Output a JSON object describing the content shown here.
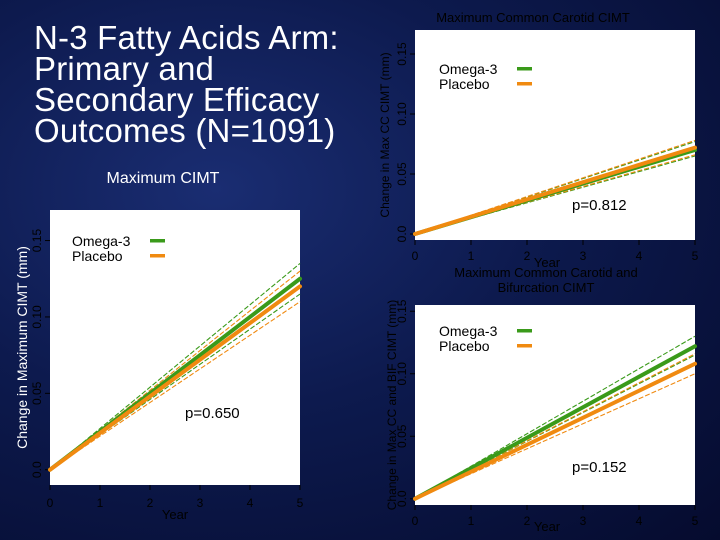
{
  "slide": {
    "title_lines": [
      "N-3 Fatty Acids Arm:",
      "Primary and",
      "Secondary Efficacy",
      "Outcomes (N=1091)"
    ]
  },
  "colors": {
    "omega3": "#3a9a1a",
    "placebo": "#f08a10",
    "background": "#0d1a4e"
  },
  "chart_data": [
    {
      "type": "line",
      "title": "Maximum CIMT",
      "xlabel": "Year",
      "ylabel": "Change in Maximum CIMT (mm)",
      "x_ticks": [
        "0",
        "1",
        "2",
        "3",
        "4",
        "5"
      ],
      "y_ticks": [
        "0.0",
        "0.05",
        "0.10",
        "0.15"
      ],
      "xlim": [
        0,
        5
      ],
      "ylim": [
        -0.01,
        0.17
      ],
      "annotation": "p=0.650",
      "legend_position": "top-left",
      "series": [
        {
          "name": "Omega-3",
          "color": "#3a9a1a",
          "x": [
            0,
            5
          ],
          "y": [
            0,
            0.125
          ],
          "lower": [
            0,
            0.115
          ],
          "upper": [
            0,
            0.135
          ]
        },
        {
          "name": "Placebo",
          "color": "#f08a10",
          "x": [
            0,
            5
          ],
          "y": [
            0,
            0.12
          ],
          "lower": [
            0,
            0.11
          ],
          "upper": [
            0,
            0.13
          ]
        }
      ]
    },
    {
      "type": "line",
      "title": "Maximum Common Carotid CIMT",
      "xlabel": "Year",
      "ylabel": "Change in Max CC CIMT (mm)",
      "x_ticks": [
        "0",
        "1",
        "2",
        "3",
        "4",
        "5"
      ],
      "y_ticks": [
        "0.0",
        "0.05",
        "0.10",
        "0.15"
      ],
      "xlim": [
        0,
        5
      ],
      "ylim": [
        -0.005,
        0.17
      ],
      "annotation": "p=0.812",
      "legend_position": "top-right",
      "series": [
        {
          "name": "Omega-3",
          "color": "#3a9a1a",
          "x": [
            0,
            5
          ],
          "y": [
            0,
            0.07
          ],
          "lower": [
            0,
            0.065
          ],
          "upper": [
            0,
            0.077
          ]
        },
        {
          "name": "Placebo",
          "color": "#f08a10",
          "x": [
            0,
            5
          ],
          "y": [
            0,
            0.072
          ],
          "lower": [
            0,
            0.066
          ],
          "upper": [
            0,
            0.078
          ]
        }
      ]
    },
    {
      "type": "line",
      "title": "Maximum Common Carotid and Bifurcation CIMT",
      "xlabel": "Year",
      "ylabel": "Change in Max CC and BIF CIMT (mm)",
      "x_ticks": [
        "0",
        "1",
        "2",
        "3",
        "4",
        "5"
      ],
      "y_ticks": [
        "0.0",
        "0.05",
        "0.10",
        "0.15"
      ],
      "xlim": [
        0,
        5
      ],
      "ylim": [
        -0.005,
        0.155
      ],
      "annotation": "p=0.152",
      "legend_position": "top-right",
      "series": [
        {
          "name": "Omega-3",
          "color": "#3a9a1a",
          "x": [
            0,
            5
          ],
          "y": [
            0,
            0.122
          ],
          "lower": [
            0,
            0.115
          ],
          "upper": [
            0,
            0.13
          ]
        },
        {
          "name": "Placebo",
          "color": "#f08a10",
          "x": [
            0,
            5
          ],
          "y": [
            0,
            0.108
          ],
          "lower": [
            0,
            0.1
          ],
          "upper": [
            0,
            0.116
          ]
        }
      ]
    }
  ]
}
